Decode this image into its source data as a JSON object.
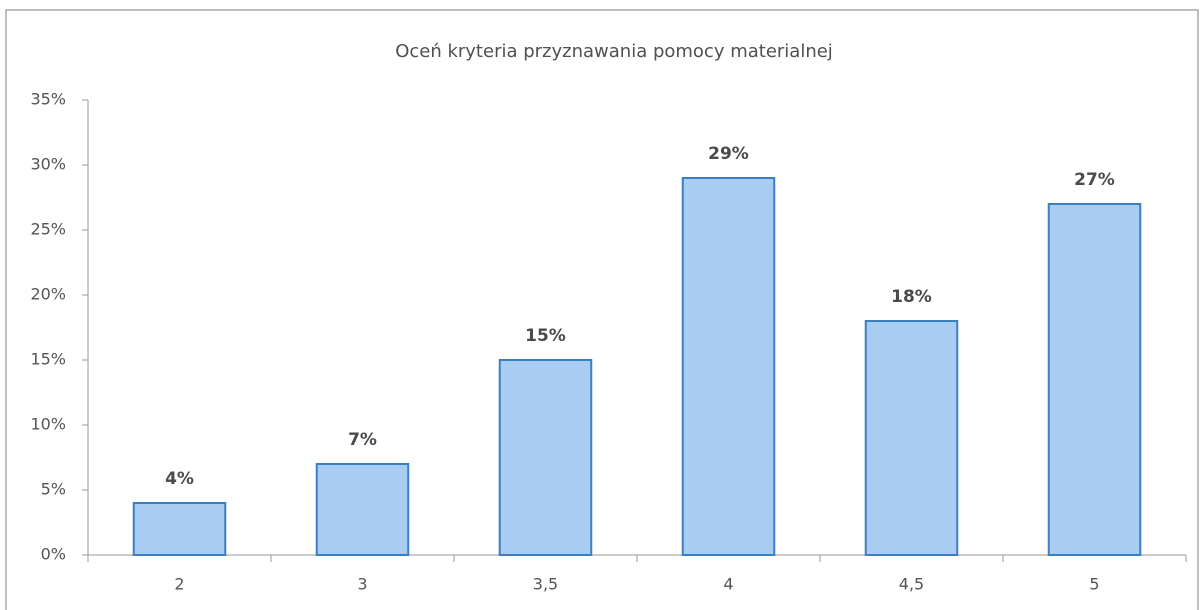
{
  "chart_data": {
    "type": "bar",
    "title": "Oceń kryteria przyznawania pomocy materialnej",
    "categories": [
      "2",
      "3",
      "3,5",
      "4",
      "4,5",
      "5"
    ],
    "values": [
      4,
      7,
      15,
      29,
      18,
      27
    ],
    "value_labels": [
      "4%",
      "7%",
      "15%",
      "29%",
      "18%",
      "27%"
    ],
    "color": "#a9ccf3",
    "ylim": [
      0,
      35
    ],
    "yticks": [
      {
        "value": 0,
        "label": "0%"
      },
      {
        "value": 5,
        "label": "5%"
      },
      {
        "value": 10,
        "label": "10%"
      },
      {
        "value": 15,
        "label": "15%"
      },
      {
        "value": 20,
        "label": "20%"
      },
      {
        "value": 25,
        "label": "25%"
      },
      {
        "value": 30,
        "label": "30%"
      },
      {
        "value": 35,
        "label": "35%"
      }
    ],
    "grid": false
  }
}
